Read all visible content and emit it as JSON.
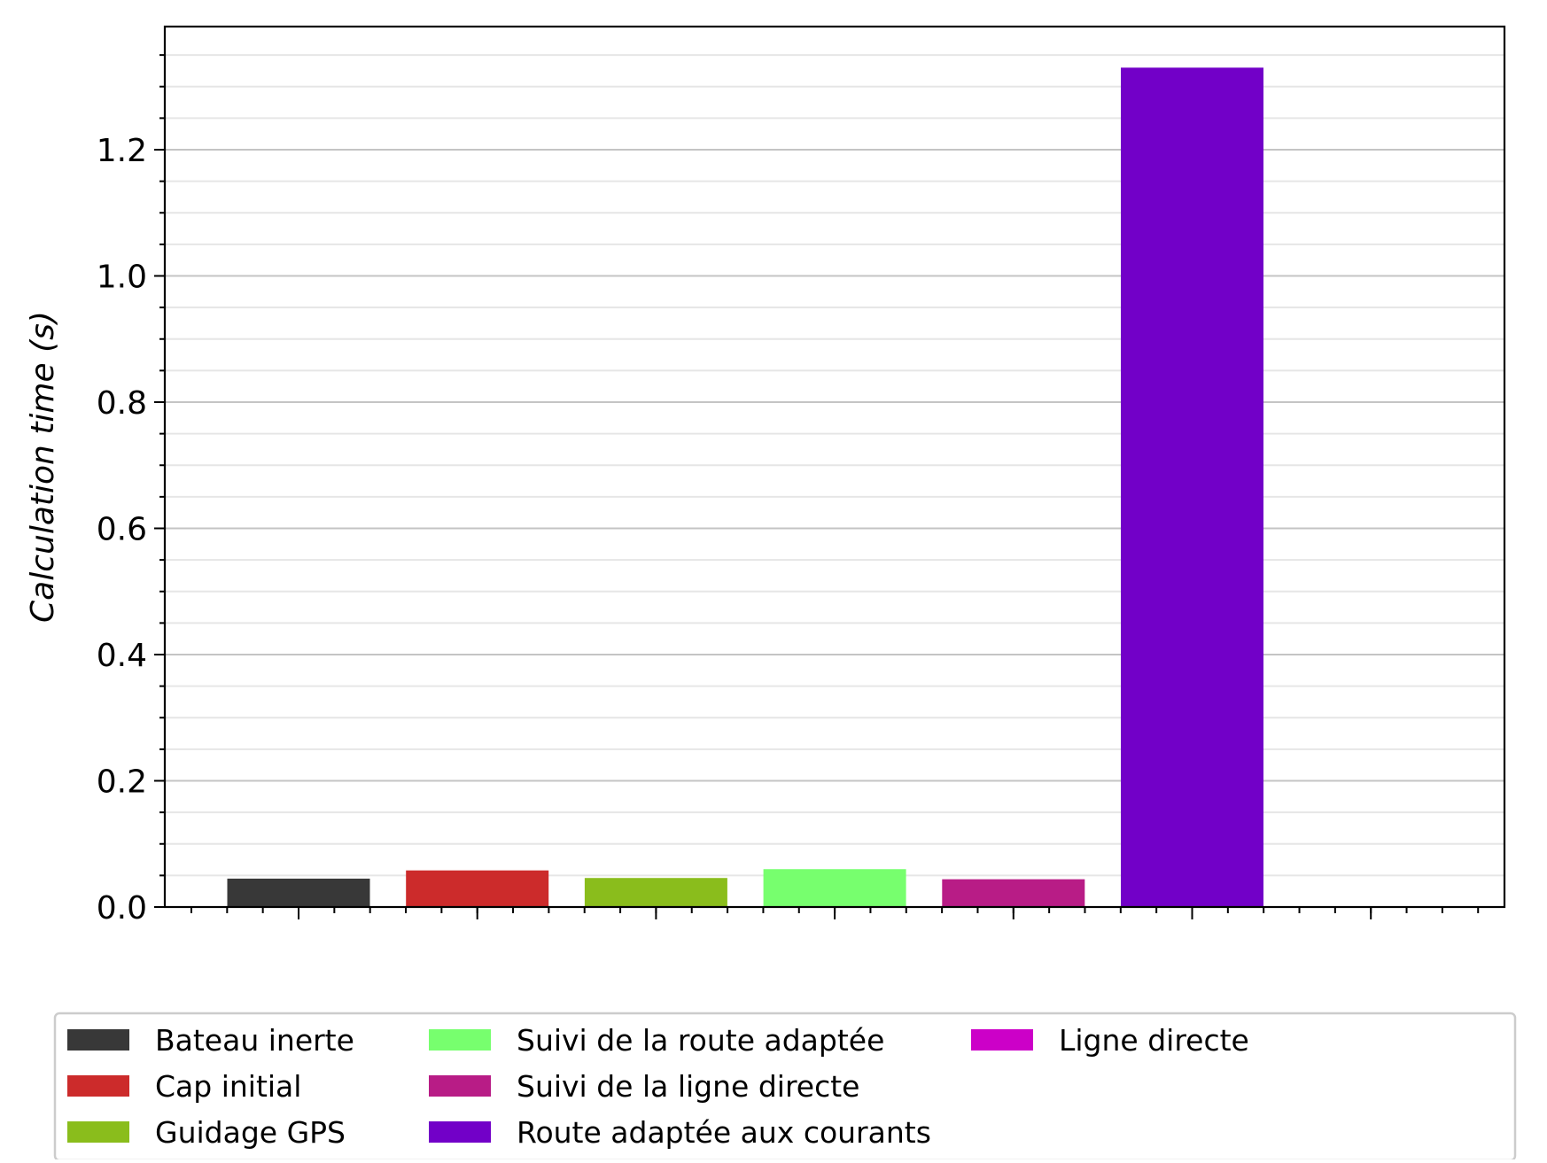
{
  "chart_data": {
    "type": "bar",
    "title": "",
    "xlabel": "",
    "ylabel": "Calculation time (s)",
    "ylim": [
      0,
      1.4
    ],
    "grid": true,
    "legend_position": "bottom-center",
    "yticks": [
      "0.0",
      "0.2",
      "0.4",
      "0.6",
      "0.8",
      "1.0",
      "1.2"
    ],
    "series": [
      {
        "name": "Bateau inerte",
        "color": "#383838",
        "value": 0.045
      },
      {
        "name": "Cap initial",
        "color": "#cc2b2b",
        "value": 0.058
      },
      {
        "name": "Guidage GPS",
        "color": "#8abd1c",
        "value": 0.046
      },
      {
        "name": "Suivi de la route adaptée",
        "color": "#77ff6e",
        "value": 0.06
      },
      {
        "name": "Suivi de la ligne directe",
        "color": "#b81c86",
        "value": 0.044
      },
      {
        "name": "Route adaptée aux courants",
        "color": "#7200c8",
        "value": 1.33
      },
      {
        "name": "Ligne directe",
        "color": "#cc00c8",
        "value": 0.0
      }
    ]
  }
}
